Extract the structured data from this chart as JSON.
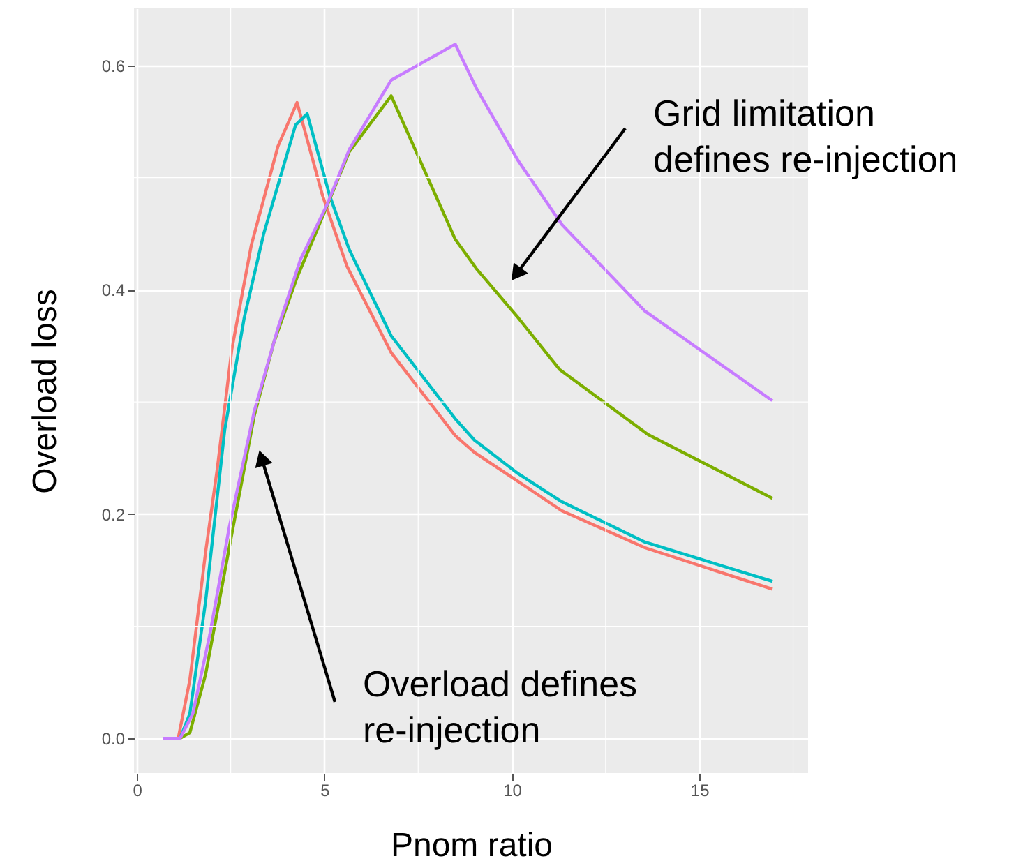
{
  "chart_data": {
    "type": "line",
    "xlabel": "Pnom ratio",
    "ylabel": "Overload loss",
    "xlim": [
      -0.08,
      17.9
    ],
    "ylim": [
      -0.031,
      0.651
    ],
    "xticks": [
      0,
      5,
      10,
      15
    ],
    "yticks": [
      {
        "value": 0,
        "label": "0.0"
      },
      {
        "value": 0.2,
        "label": "0.2"
      },
      {
        "value": 0.4,
        "label": "0.4"
      },
      {
        "value": 0.6,
        "label": "0.6"
      }
    ],
    "grid": true,
    "marker": "none",
    "line_style": "solid",
    "series": [
      {
        "color": "#f8766d",
        "x": [
          0.7,
          1.1,
          1.41,
          1.83,
          2.14,
          2.53,
          3.05,
          3.76,
          4.27,
          4.95,
          5.6,
          6.78,
          8.49,
          9.0,
          10.17,
          11.33,
          13.55,
          16.95
        ],
        "values": [
          0,
          0,
          0.052,
          0.166,
          0.24,
          0.347,
          0.44,
          0.528,
          0.567,
          0.484,
          0.421,
          0.344,
          0.27,
          0.255,
          0.229,
          0.203,
          0.17,
          0.133
        ]
      },
      {
        "color": "#00bfc4",
        "x": [
          0.7,
          1.15,
          1.41,
          1.83,
          2.34,
          2.86,
          3.38,
          4.23,
          4.54,
          5.14,
          5.66,
          6.78,
          8.49,
          9.0,
          10.17,
          11.33,
          13.55,
          16.95
        ],
        "values": [
          0,
          0,
          0.022,
          0.122,
          0.275,
          0.375,
          0.45,
          0.547,
          0.557,
          0.484,
          0.436,
          0.359,
          0.285,
          0.266,
          0.236,
          0.211,
          0.175,
          0.14
        ]
      },
      {
        "color": "#7cae00",
        "x": [
          0.7,
          1.15,
          1.41,
          1.83,
          2.46,
          3.13,
          3.65,
          4.28,
          4.8,
          5.66,
          6.78,
          8.49,
          9.05,
          10.17,
          11.27,
          13.63,
          16.95
        ],
        "values": [
          0,
          0,
          0.005,
          0.057,
          0.17,
          0.288,
          0.353,
          0.412,
          0.453,
          0.523,
          0.573,
          0.445,
          0.419,
          0.375,
          0.329,
          0.271,
          0.214
        ]
      },
      {
        "color": "#c77cff",
        "x": [
          0.7,
          1.15,
          1.49,
          1.94,
          2.46,
          3.13,
          3.76,
          4.36,
          5.07,
          5.66,
          6.78,
          8.49,
          9.05,
          10.17,
          11.34,
          13.55,
          16.95
        ],
        "values": [
          0,
          0,
          0.022,
          0.092,
          0.188,
          0.292,
          0.366,
          0.427,
          0.476,
          0.525,
          0.587,
          0.619,
          0.58,
          0.515,
          0.458,
          0.381,
          0.301
        ]
      }
    ],
    "annotations": [
      "Grid limitation\ndefines re-injection",
      "Overload defines\nre-injection"
    ]
  }
}
